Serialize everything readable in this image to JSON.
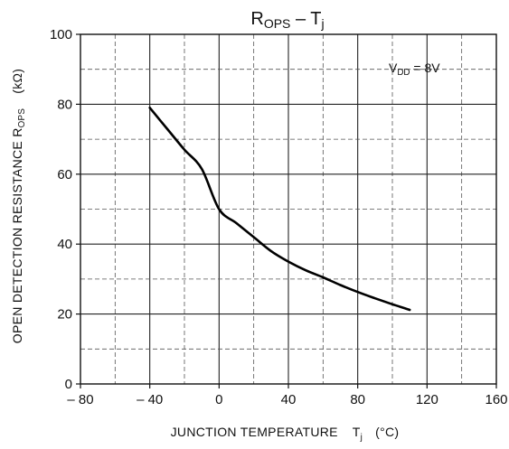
{
  "chart_data": {
    "type": "line",
    "title": {
      "main": "R",
      "sub": "OPS",
      "sep": " – ",
      "var": "T",
      "var_sub": "j"
    },
    "xlabel": {
      "main": "JUNCTION TEMPERATURE",
      "var": "T",
      "var_sub": "j",
      "unit": "(°C)"
    },
    "ylabel": {
      "main": "OPEN DETECTION RESISTANCE R",
      "sub": "OPS",
      "unit": "(kΩ)"
    },
    "annotation": {
      "var": "V",
      "sub": "DD",
      "text": " = 8V"
    },
    "xlim": [
      -80,
      160
    ],
    "ylim": [
      0,
      100
    ],
    "x_ticks": [
      -80,
      -40,
      0,
      40,
      80,
      120,
      160
    ],
    "x_tick_labels": [
      "– 80",
      "– 40",
      "0",
      "40",
      "80",
      "120",
      "160"
    ],
    "y_ticks": [
      0,
      20,
      40,
      60,
      80,
      100
    ],
    "y_tick_labels": [
      "0",
      "20",
      "40",
      "60",
      "80",
      "100"
    ],
    "grid": true,
    "series": [
      {
        "x": [
          -40,
          -30,
          -20,
          -10,
          0,
          10,
          20,
          30,
          40,
          50,
          60,
          70,
          80,
          90,
          100,
          110
        ],
        "y": [
          79,
          73,
          67,
          61.5,
          50,
          46,
          42,
          38,
          35,
          32.5,
          30.5,
          28.3,
          26.3,
          24.5,
          22.8,
          21.2
        ]
      }
    ]
  }
}
